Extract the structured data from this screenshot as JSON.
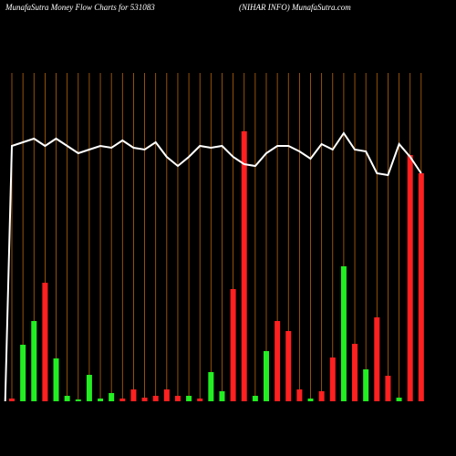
{
  "chart_data": {
    "type": "money-flow",
    "title": "MunafaSutra  Money Flow  Charts for 531083",
    "subtitle": "(NIHAR INFO) MunafaSutra.com",
    "ylim": [
      0,
      360
    ],
    "bars": [
      {
        "color": "#ff2020",
        "values": [
          3,
          null,
          null,
          130,
          null,
          null,
          null,
          null,
          null,
          null,
          3,
          13,
          4,
          6,
          13,
          6,
          null,
          3,
          null,
          null,
          123,
          296,
          null,
          null,
          88,
          77,
          13,
          null,
          11,
          48,
          null,
          63,
          null,
          92,
          28,
          null,
          270,
          250
        ]
      },
      {
        "color": "#22ee22",
        "values": [
          null,
          62,
          88,
          null,
          47,
          6,
          2,
          29,
          3,
          9,
          null,
          null,
          null,
          null,
          null,
          null,
          6,
          null,
          32,
          11,
          null,
          null,
          6,
          55,
          null,
          null,
          null,
          3,
          null,
          null,
          148,
          null,
          35,
          null,
          null,
          4,
          null,
          null
        ]
      }
    ],
    "line": {
      "color": "#ffffff",
      "x": [
        -0.6,
        0,
        1,
        2,
        3,
        4,
        5,
        6,
        7,
        8,
        9,
        10,
        11,
        12,
        13,
        14,
        15,
        16,
        17,
        18,
        19,
        20,
        21,
        22,
        23,
        24,
        25,
        26,
        27,
        28,
        29,
        30,
        31,
        32,
        33,
        34,
        35,
        36,
        37
      ],
      "values": [
        0,
        280,
        284,
        288,
        280,
        288,
        280,
        272,
        276,
        280,
        278,
        286,
        278,
        276,
        284,
        268,
        258,
        268,
        280,
        278,
        280,
        268,
        260,
        258,
        272,
        280,
        280,
        274,
        266,
        282,
        276,
        294,
        276,
        274,
        250,
        248,
        282,
        268,
        250
      ]
    },
    "grid_color": "#b8650a"
  }
}
